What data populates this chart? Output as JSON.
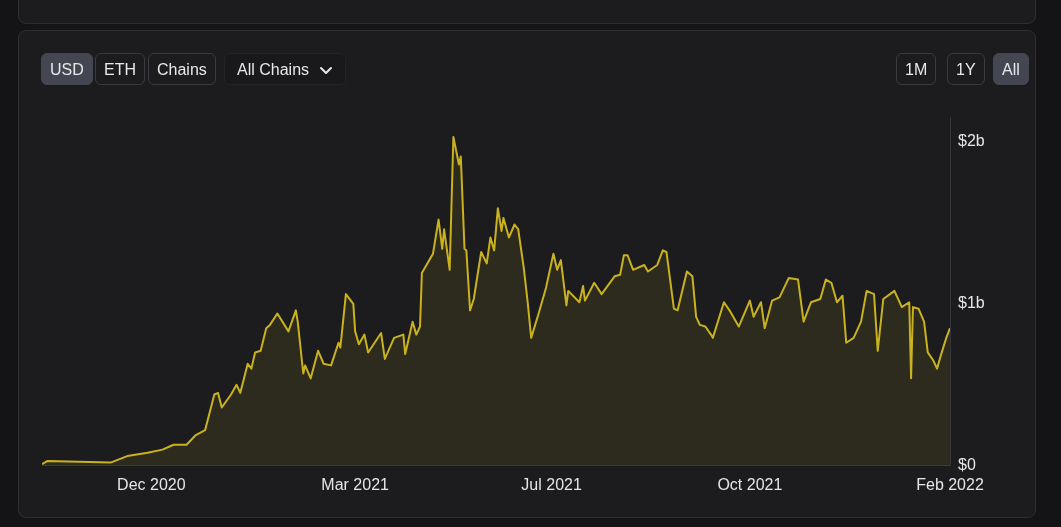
{
  "chart_data": {
    "type": "area",
    "legend": false,
    "grid": false,
    "marker": "none",
    "line_style": "solid",
    "annotations": [
      "USD",
      "ETH",
      "Chains",
      "All Chains",
      "1M",
      "1Y",
      "All"
    ],
    "xlim": [
      "2020-10-08",
      "2022-02-10"
    ],
    "ylim": [
      0,
      2.15
    ],
    "xticks": [
      {
        "value": "2020-12-06",
        "label": "Dec 2020"
      },
      {
        "value": "2021-03-26",
        "label": "Mar 2021"
      },
      {
        "value": "2021-07-10",
        "label": "Jul 2021"
      },
      {
        "value": "2021-10-25",
        "label": "Oct 2021"
      },
      {
        "value": "2022-02-10",
        "label": "Feb 2022"
      }
    ],
    "yticks": [
      {
        "value": 0,
        "label": "$0"
      },
      {
        "value": 1,
        "label": "$1b"
      },
      {
        "value": 2,
        "label": "$2b"
      }
    ],
    "series": [
      {
        "color": "#c9b21e",
        "x": [
          "2020-10-08",
          "2020-10-11",
          "2020-11-14",
          "2020-11-23",
          "2020-12-04",
          "2020-12-12",
          "2020-12-18",
          "2020-12-25",
          "2020-12-30",
          "2021-01-04",
          "2021-01-09",
          "2021-01-11",
          "2021-01-13",
          "2021-01-18",
          "2021-01-21",
          "2021-01-23",
          "2021-01-27",
          "2021-01-29",
          "2021-01-31",
          "2021-02-03",
          "2021-02-06",
          "2021-02-08",
          "2021-02-12",
          "2021-02-18",
          "2021-02-22",
          "2021-02-23",
          "2021-02-26",
          "2021-02-27",
          "2021-03-02",
          "2021-03-06",
          "2021-03-09",
          "2021-03-13",
          "2021-03-17",
          "2021-03-18",
          "2021-03-21",
          "2021-03-25",
          "2021-03-26",
          "2021-03-28",
          "2021-03-31",
          "2021-04-02",
          "2021-04-09",
          "2021-04-11",
          "2021-04-16",
          "2021-04-21",
          "2021-04-22",
          "2021-04-26",
          "2021-04-28",
          "2021-04-30",
          "2021-05-01",
          "2021-05-07",
          "2021-05-10",
          "2021-05-12",
          "2021-05-13",
          "2021-05-16",
          "2021-05-18",
          "2021-05-21",
          "2021-05-22",
          "2021-05-24",
          "2021-05-25",
          "2021-05-27",
          "2021-05-29",
          "2021-06-02",
          "2021-06-05",
          "2021-06-07",
          "2021-06-09",
          "2021-06-11",
          "2021-06-13",
          "2021-06-14",
          "2021-06-17",
          "2021-06-20",
          "2021-06-22",
          "2021-06-25",
          "2021-06-27",
          "2021-06-29",
          "2021-07-03",
          "2021-07-07",
          "2021-07-11",
          "2021-07-13",
          "2021-07-15",
          "2021-07-18",
          "2021-07-19",
          "2021-07-25",
          "2021-07-27",
          "2021-07-28",
          "2021-08-02",
          "2021-08-06",
          "2021-08-13",
          "2021-08-16",
          "2021-08-18",
          "2021-08-20",
          "2021-08-23",
          "2021-08-29",
          "2021-08-31",
          "2021-09-05",
          "2021-09-08",
          "2021-09-10",
          "2021-09-14",
          "2021-09-16",
          "2021-09-21",
          "2021-09-24",
          "2021-09-26",
          "2021-09-28",
          "2021-10-01",
          "2021-10-04",
          "2021-10-05",
          "2021-10-11",
          "2021-10-14",
          "2021-10-19",
          "2021-10-25",
          "2021-10-27",
          "2021-10-31",
          "2021-11-02",
          "2021-11-06",
          "2021-11-10",
          "2021-11-15",
          "2021-11-20",
          "2021-11-23",
          "2021-11-27",
          "2021-12-02",
          "2021-12-05",
          "2021-12-08",
          "2021-12-11",
          "2021-12-14",
          "2021-12-16",
          "2021-12-20",
          "2021-12-24",
          "2021-12-27",
          "2021-12-31",
          "2022-01-02",
          "2022-01-05",
          "2022-01-11",
          "2022-01-15",
          "2022-01-19",
          "2022-01-20",
          "2022-01-21",
          "2022-01-24",
          "2022-01-27",
          "2022-01-29",
          "2022-02-01",
          "2022-02-03",
          "2022-02-05",
          "2022-02-08",
          "2022-02-10"
        ],
        "values": [
          0.01,
          0.03,
          0.02,
          0.06,
          0.08,
          0.1,
          0.13,
          0.13,
          0.19,
          0.22,
          0.44,
          0.45,
          0.36,
          0.44,
          0.5,
          0.45,
          0.63,
          0.6,
          0.7,
          0.71,
          0.85,
          0.87,
          0.94,
          0.83,
          0.96,
          0.89,
          0.57,
          0.62,
          0.54,
          0.71,
          0.63,
          0.62,
          0.76,
          0.73,
          1.06,
          1.0,
          0.83,
          0.75,
          0.81,
          0.7,
          0.82,
          0.66,
          0.79,
          0.81,
          0.69,
          0.89,
          0.81,
          0.86,
          1.19,
          1.31,
          1.52,
          1.34,
          1.46,
          1.21,
          2.03,
          1.86,
          1.91,
          1.34,
          1.33,
          0.96,
          1.03,
          1.32,
          1.25,
          1.41,
          1.33,
          1.59,
          1.45,
          1.53,
          1.41,
          1.49,
          1.46,
          1.22,
          1.02,
          0.79,
          0.94,
          1.1,
          1.31,
          1.21,
          1.27,
          0.99,
          1.08,
          1.01,
          1.11,
          1.02,
          1.13,
          1.06,
          1.17,
          1.18,
          1.3,
          1.3,
          1.21,
          1.24,
          1.2,
          1.24,
          1.33,
          1.32,
          0.97,
          0.96,
          1.2,
          1.17,
          0.92,
          0.87,
          0.86,
          0.81,
          0.79,
          1.01,
          0.96,
          0.86,
          1.02,
          0.92,
          1.01,
          0.85,
          1.02,
          1.04,
          1.16,
          1.15,
          0.89,
          1.01,
          1.03,
          1.15,
          1.13,
          1.01,
          1.05,
          0.76,
          0.79,
          0.89,
          1.08,
          1.06,
          0.71,
          1.03,
          1.08,
          0.98,
          1.01,
          0.54,
          0.98,
          0.97,
          0.89,
          0.7,
          0.65,
          0.6,
          0.68,
          0.79,
          0.85
        ]
      }
    ]
  }
}
